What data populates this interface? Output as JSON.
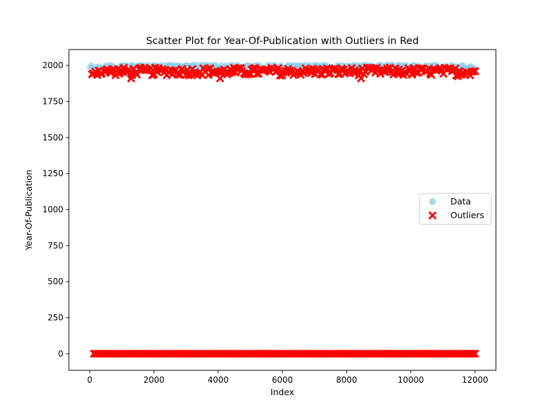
{
  "chart_data": {
    "type": "scatter",
    "title": "Scatter Plot for Year-Of-Publication with Outliers in Red",
    "xlabel": "Index",
    "ylabel": "Year-Of-Publication",
    "xlim": [
      -650,
      12650
    ],
    "ylim": [
      -115,
      2110
    ],
    "xticks": [
      0,
      2000,
      4000,
      6000,
      8000,
      10000,
      12000
    ],
    "yticks": [
      0,
      250,
      500,
      750,
      1000,
      1250,
      1500,
      1750,
      2000
    ],
    "grid": false,
    "legend_position": "center-right",
    "series": [
      {
        "name": "Data",
        "marker": "circle",
        "color": "#87ceeb",
        "x_range": [
          0,
          12000
        ],
        "y_values": [
          1990,
          1995,
          2000,
          2002,
          2004,
          1985,
          1980,
          1975
        ],
        "low_band_y": 0
      },
      {
        "name": "Outliers",
        "marker": "x",
        "color": "#ff0000",
        "x_range": [
          80,
          12000
        ],
        "y_band": [
          1930,
          1985
        ],
        "extreme_points": [
          {
            "x": 1290,
            "y": 1910
          },
          {
            "x": 4060,
            "y": 1910
          },
          {
            "x": 5990,
            "y": 1930
          },
          {
            "x": 8450,
            "y": 1910
          },
          {
            "x": 11470,
            "y": 1925
          }
        ],
        "low_band_y": 0,
        "low_band_x_range": [
          130,
          12000
        ]
      }
    ]
  }
}
